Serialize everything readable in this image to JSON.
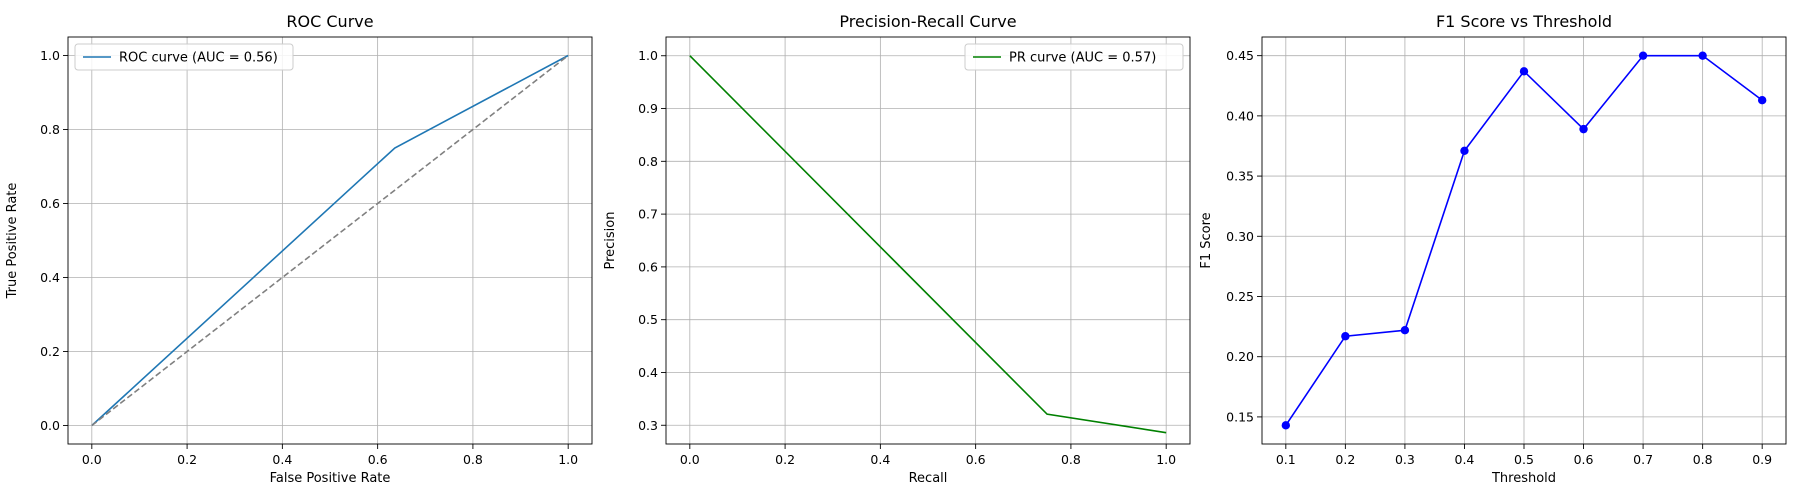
{
  "chart_data": [
    {
      "type": "line",
      "title": "ROC Curve",
      "xlabel": "False Positive Rate",
      "ylabel": "True Positive Rate",
      "xlim": [
        -0.05,
        1.05
      ],
      "ylim": [
        -0.05,
        1.05
      ],
      "xticks": [
        0.0,
        0.2,
        0.4,
        0.6,
        0.8,
        1.0
      ],
      "yticks": [
        0.0,
        0.2,
        0.4,
        0.6,
        0.8,
        1.0
      ],
      "tick_format": 1,
      "grid": true,
      "legend_position": "upper left",
      "series": [
        {
          "name": "ROC curve (AUC = 0.56)",
          "color": "#1f77b4",
          "dashed": false,
          "in_legend": true,
          "markers": false,
          "x": [
            0.0,
            0.636,
            1.0
          ],
          "y": [
            0.0,
            0.75,
            1.0
          ]
        },
        {
          "color": "#808080",
          "dashed": true,
          "in_legend": false,
          "markers": false,
          "x": [
            0.0,
            1.0
          ],
          "y": [
            0.0,
            1.0
          ]
        }
      ]
    },
    {
      "type": "line",
      "title": "Precision-Recall Curve",
      "xlabel": "Recall",
      "ylabel": "Precision",
      "xlim": [
        -0.05,
        1.05
      ],
      "ylim": [
        0.2645,
        1.0355
      ],
      "xticks": [
        0.0,
        0.2,
        0.4,
        0.6,
        0.8,
        1.0
      ],
      "yticks": [
        0.3,
        0.4,
        0.5,
        0.6,
        0.7,
        0.8,
        0.9,
        1.0
      ],
      "tick_format": 1,
      "grid": true,
      "legend_position": "upper right",
      "series": [
        {
          "name": "PR curve (AUC = 0.57)",
          "color": "#008000",
          "dashed": false,
          "in_legend": true,
          "markers": false,
          "x": [
            0.0,
            0.75,
            1.0
          ],
          "y": [
            1.0,
            0.321,
            0.286
          ]
        }
      ]
    },
    {
      "type": "line",
      "title": "F1 Score vs Threshold",
      "xlabel": "Threshold",
      "ylabel": "F1 Score",
      "xlim": [
        0.06,
        0.94
      ],
      "ylim": [
        0.1275,
        0.4655
      ],
      "xticks": [
        0.1,
        0.2,
        0.3,
        0.4,
        0.5,
        0.6,
        0.7,
        0.8,
        0.9
      ],
      "yticks": [
        0.15,
        0.2,
        0.25,
        0.3,
        0.35,
        0.4,
        0.45
      ],
      "xtick_format": 1,
      "ytick_format": 2,
      "grid": true,
      "legend_position": "none",
      "series": [
        {
          "color": "#0000ff",
          "dashed": false,
          "in_legend": false,
          "markers": true,
          "x": [
            0.1,
            0.2,
            0.3,
            0.4,
            0.5,
            0.6,
            0.7,
            0.8,
            0.9
          ],
          "y": [
            0.143,
            0.217,
            0.222,
            0.371,
            0.437,
            0.389,
            0.45,
            0.45,
            0.413
          ]
        }
      ]
    }
  ]
}
